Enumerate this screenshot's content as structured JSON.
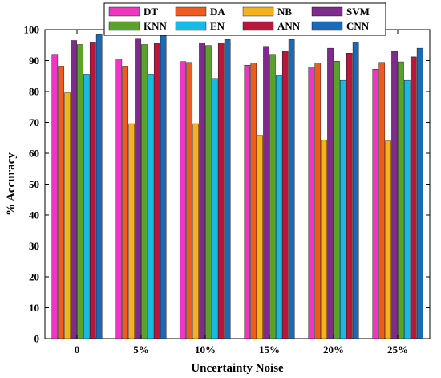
{
  "chart_data": {
    "type": "bar",
    "title": "",
    "xlabel": "Uncertainty Noise",
    "ylabel": "% Accuracy",
    "ylim": [
      0,
      100
    ],
    "yticks": [
      0,
      10,
      20,
      30,
      40,
      50,
      60,
      70,
      80,
      90,
      100
    ],
    "grid": false,
    "legend_position": "top",
    "categories": [
      "0",
      "5%",
      "10%",
      "15%",
      "20%",
      "25%"
    ],
    "series": [
      {
        "name": "DT",
        "color": "#f035c0",
        "values": [
          92.0,
          90.6,
          89.7,
          88.5,
          88.0,
          87.2
        ]
      },
      {
        "name": "DA",
        "color": "#f05a1e",
        "values": [
          88.2,
          88.2,
          89.4,
          89.2,
          89.2,
          89.4
        ]
      },
      {
        "name": "NB",
        "color": "#f5b21a",
        "values": [
          79.6,
          69.6,
          69.6,
          65.8,
          64.2,
          64.0
        ]
      },
      {
        "name": "SVM",
        "color": "#7e2c8c",
        "values": [
          96.5,
          97.2,
          95.8,
          94.6,
          94.0,
          93.0
        ]
      },
      {
        "name": "KNN",
        "color": "#5aa22a",
        "values": [
          95.2,
          95.2,
          94.9,
          92.0,
          89.8,
          89.6
        ]
      },
      {
        "name": "EN",
        "color": "#17b9e6",
        "values": [
          85.6,
          85.6,
          84.2,
          85.2,
          83.6,
          83.6
        ]
      },
      {
        "name": "ANN",
        "color": "#b8163c",
        "values": [
          96.0,
          95.6,
          95.8,
          93.2,
          92.4,
          91.2
        ]
      },
      {
        "name": "CNN",
        "color": "#1a6ab8",
        "values": [
          98.6,
          98.6,
          96.8,
          96.8,
          96.0,
          94.0
        ]
      }
    ]
  }
}
